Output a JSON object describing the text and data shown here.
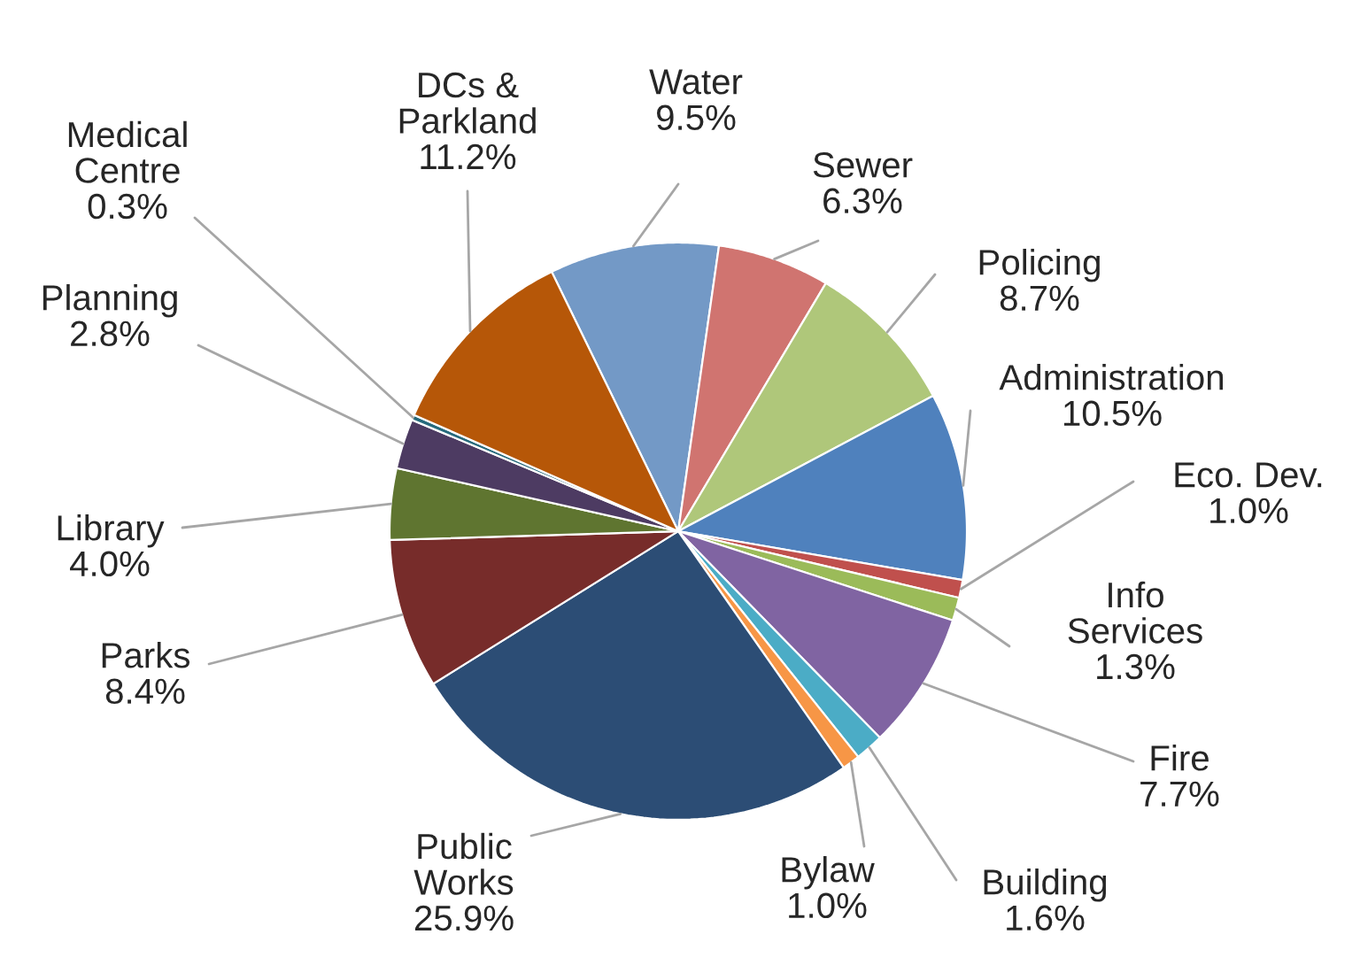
{
  "chart_data": {
    "type": "pie",
    "categories": [
      "Water",
      "Sewer",
      "Policing",
      "Administration",
      "Eco. Dev.",
      "Info\nServices",
      "Fire",
      "Building",
      "Bylaw",
      "Public\nWorks",
      "Parks",
      "Library",
      "Planning",
      "Medical\nCentre",
      "DCs &\nParkland"
    ],
    "values": [
      9.5,
      6.3,
      8.7,
      10.5,
      1.0,
      1.3,
      7.7,
      1.6,
      1.0,
      25.9,
      8.4,
      4.0,
      2.8,
      0.3,
      11.2
    ],
    "value_labels": [
      "9.5%",
      "6.3%",
      "8.7%",
      "10.5%",
      "1.0%",
      "1.3%",
      "7.7%",
      "1.6%",
      "1.0%",
      "25.9%",
      "8.4%",
      "4.0%",
      "2.8%",
      "0.3%",
      "11.2%"
    ],
    "colors": [
      "#7399c6",
      "#d07470",
      "#afc77a",
      "#4f81bd",
      "#c0504d",
      "#9bbb59",
      "#8064a2",
      "#4bacc6",
      "#f79646",
      "#2c4d75",
      "#772c2a",
      "#5f7530",
      "#4d3b62",
      "#276a7c",
      "#b65708"
    ],
    "legend": false
  }
}
